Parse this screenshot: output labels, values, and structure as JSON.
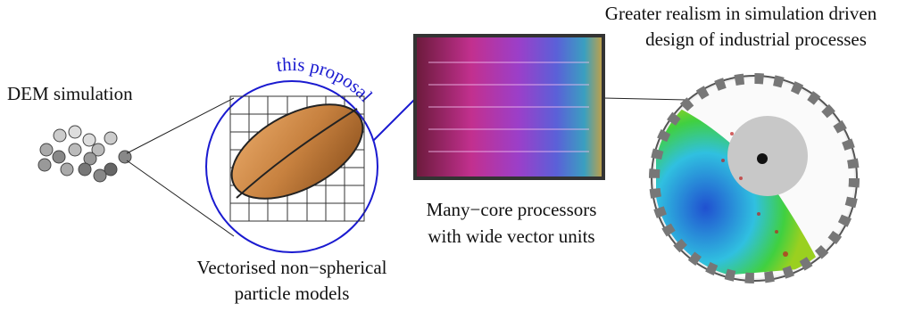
{
  "labels": {
    "dem": "DEM simulation",
    "proposal": "this proposal",
    "models": [
      "Vectorised non−spherical",
      "particle models"
    ],
    "processors": [
      "Many−core processors",
      "with wide vector units"
    ],
    "realism": [
      "Greater realism in simulation driven",
      "design of industrial processes"
    ]
  }
}
